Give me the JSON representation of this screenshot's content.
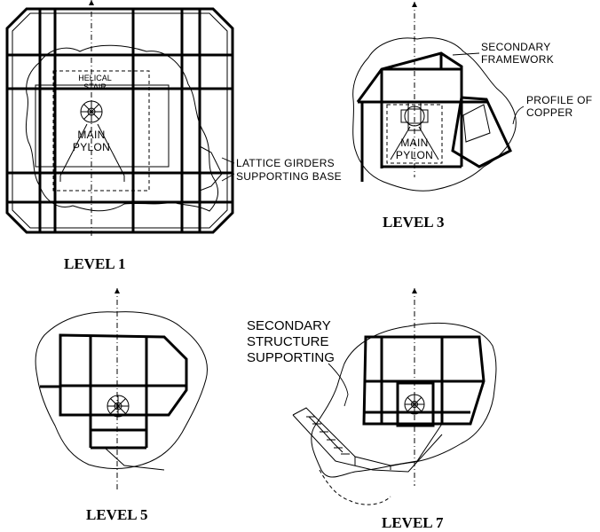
{
  "level1": {
    "title": "LEVEL 1",
    "helical_stair": [
      "HELICAL",
      "STAIR"
    ],
    "main_pylon": [
      "MAIN",
      "PYLON"
    ],
    "lattice_label": [
      "LATTICE GIRDERS",
      "SUPPORTING BASE"
    ]
  },
  "level3": {
    "title": "LEVEL 3",
    "secondary_framework": [
      "SECONDARY",
      "FRAMEWORK"
    ],
    "profile_of_copper": [
      "PROFILE OF",
      "COPPER"
    ],
    "main_pylon": [
      "MAIN",
      "PYLON"
    ]
  },
  "level5": {
    "title": "LEVEL 5"
  },
  "level7": {
    "title": "LEVEL 7",
    "secondary_structure": [
      "SECONDARY",
      "STRUCTURE",
      "SUPPORTING"
    ]
  }
}
